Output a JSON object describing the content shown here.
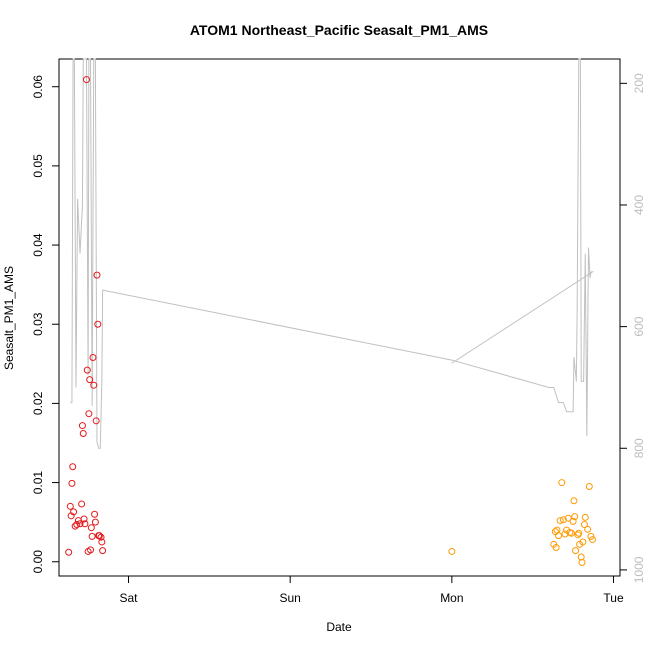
{
  "chart_data": {
    "type": "scatter",
    "title": "ATOM1 Northeast_Pacific Seasalt_PM1_AMS",
    "xlabel": "Date",
    "ylabel": "Seasalt_PM1_AMS",
    "x_axis": {
      "unit": "days",
      "range": [
        -0.43,
        3.04
      ],
      "ticks": [
        {
          "value": 0,
          "label": "Sat"
        },
        {
          "value": 1,
          "label": "Sun"
        },
        {
          "value": 2,
          "label": "Mon"
        },
        {
          "value": 3,
          "label": "Tue"
        }
      ]
    },
    "y_axis": {
      "range": [
        -0.0018,
        0.0635
      ],
      "ticks": [
        0.0,
        0.01,
        0.02,
        0.03,
        0.04,
        0.05,
        0.06
      ],
      "tick_labels": [
        "0.00",
        "0.01",
        "0.02",
        "0.03",
        "0.04",
        "0.05",
        "0.06"
      ]
    },
    "y2_axis": {
      "reversed": true,
      "range": [
        1010,
        160
      ],
      "ticks": [
        200,
        400,
        600,
        800,
        1000
      ],
      "tick_labels": [
        "200",
        "400",
        "600",
        "800",
        "1000"
      ],
      "color": "#bdbdbd"
    },
    "grid": false,
    "legend": "none",
    "series": [
      {
        "color": "#e41a1c",
        "points": [
          [
            -0.37,
            0.0012
          ],
          [
            -0.36,
            0.007
          ],
          [
            -0.355,
            0.0058
          ],
          [
            -0.35,
            0.0099
          ],
          [
            -0.345,
            0.012
          ],
          [
            -0.34,
            0.0063
          ],
          [
            -0.33,
            0.0045
          ],
          [
            -0.32,
            0.0047
          ],
          [
            -0.31,
            0.0052
          ],
          [
            -0.3,
            0.0048
          ],
          [
            -0.29,
            0.0073
          ],
          [
            -0.285,
            0.0172
          ],
          [
            -0.28,
            0.0162
          ],
          [
            -0.275,
            0.0054
          ],
          [
            -0.27,
            0.0048
          ],
          [
            -0.26,
            0.0609
          ],
          [
            -0.255,
            0.0242
          ],
          [
            -0.25,
            0.0013
          ],
          [
            -0.245,
            0.0187
          ],
          [
            -0.24,
            0.023
          ],
          [
            -0.235,
            0.0015
          ],
          [
            -0.23,
            0.0043
          ],
          [
            -0.225,
            0.0032
          ],
          [
            -0.22,
            0.0258
          ],
          [
            -0.215,
            0.0223
          ],
          [
            -0.21,
            0.006
          ],
          [
            -0.205,
            0.005
          ],
          [
            -0.2,
            0.0178
          ],
          [
            -0.195,
            0.0362
          ],
          [
            -0.19,
            0.03
          ],
          [
            -0.185,
            0.0033
          ],
          [
            -0.18,
            0.0033
          ],
          [
            -0.17,
            0.0031
          ],
          [
            -0.165,
            0.0025
          ],
          [
            -0.16,
            0.0014
          ]
        ]
      },
      {
        "color": "#ff9900",
        "points": [
          [
            2.0,
            0.0013
          ],
          [
            2.63,
            0.0022
          ],
          [
            2.64,
            0.0038
          ],
          [
            2.645,
            0.0018
          ],
          [
            2.65,
            0.004
          ],
          [
            2.66,
            0.0033
          ],
          [
            2.67,
            0.0052
          ],
          [
            2.68,
            0.01
          ],
          [
            2.69,
            0.0053
          ],
          [
            2.7,
            0.0035
          ],
          [
            2.71,
            0.004
          ],
          [
            2.72,
            0.0055
          ],
          [
            2.73,
            0.0037
          ],
          [
            2.74,
            0.0036
          ],
          [
            2.75,
            0.0051
          ],
          [
            2.755,
            0.0077
          ],
          [
            2.76,
            0.0057
          ],
          [
            2.765,
            0.0014
          ],
          [
            2.78,
            0.0034
          ],
          [
            2.785,
            0.0036
          ],
          [
            2.79,
            0.0022
          ],
          [
            2.8,
            0.0006
          ],
          [
            2.805,
            -0.0001
          ],
          [
            2.81,
            0.0025
          ],
          [
            2.82,
            0.0047
          ],
          [
            2.825,
            0.0056
          ],
          [
            2.84,
            0.0041
          ],
          [
            2.85,
            0.0095
          ],
          [
            2.86,
            0.0032
          ],
          [
            2.87,
            0.0028
          ]
        ]
      }
    ],
    "line_series": {
      "color": "#c0c0c0",
      "axis": "y2",
      "points": [
        [
          -0.36,
          725
        ],
        [
          -0.35,
          725
        ],
        [
          -0.343,
          150
        ],
        [
          -0.335,
          150
        ],
        [
          -0.325,
          700
        ],
        [
          -0.315,
          390
        ],
        [
          -0.3,
          480
        ],
        [
          -0.285,
          400
        ],
        [
          -0.28,
          150
        ],
        [
          -0.27,
          150
        ],
        [
          -0.26,
          150
        ],
        [
          -0.25,
          680
        ],
        [
          -0.245,
          150
        ],
        [
          -0.235,
          150
        ],
        [
          -0.225,
          730
        ],
        [
          -0.215,
          150
        ],
        [
          -0.205,
          150
        ],
        [
          -0.195,
          790
        ],
        [
          -0.185,
          800
        ],
        [
          -0.175,
          800
        ],
        [
          -0.165,
          690
        ],
        [
          -0.16,
          540
        ],
        [
          2.0,
          655
        ],
        [
          2.6,
          700
        ],
        [
          2.63,
          700
        ],
        [
          2.66,
          725
        ],
        [
          2.69,
          725
        ],
        [
          2.71,
          740
        ],
        [
          2.74,
          740
        ],
        [
          2.75,
          740
        ],
        [
          2.755,
          650
        ],
        [
          2.77,
          690
        ],
        [
          2.775,
          570
        ],
        [
          2.785,
          150
        ],
        [
          2.795,
          150
        ],
        [
          2.8,
          690
        ],
        [
          2.815,
          690
        ],
        [
          2.825,
          480
        ],
        [
          2.835,
          780
        ],
        [
          2.845,
          470
        ],
        [
          2.855,
          520
        ],
        [
          2.86,
          510
        ],
        [
          2.865,
          510
        ],
        [
          2.87,
          510
        ],
        [
          2.0,
          660
        ]
      ]
    }
  }
}
